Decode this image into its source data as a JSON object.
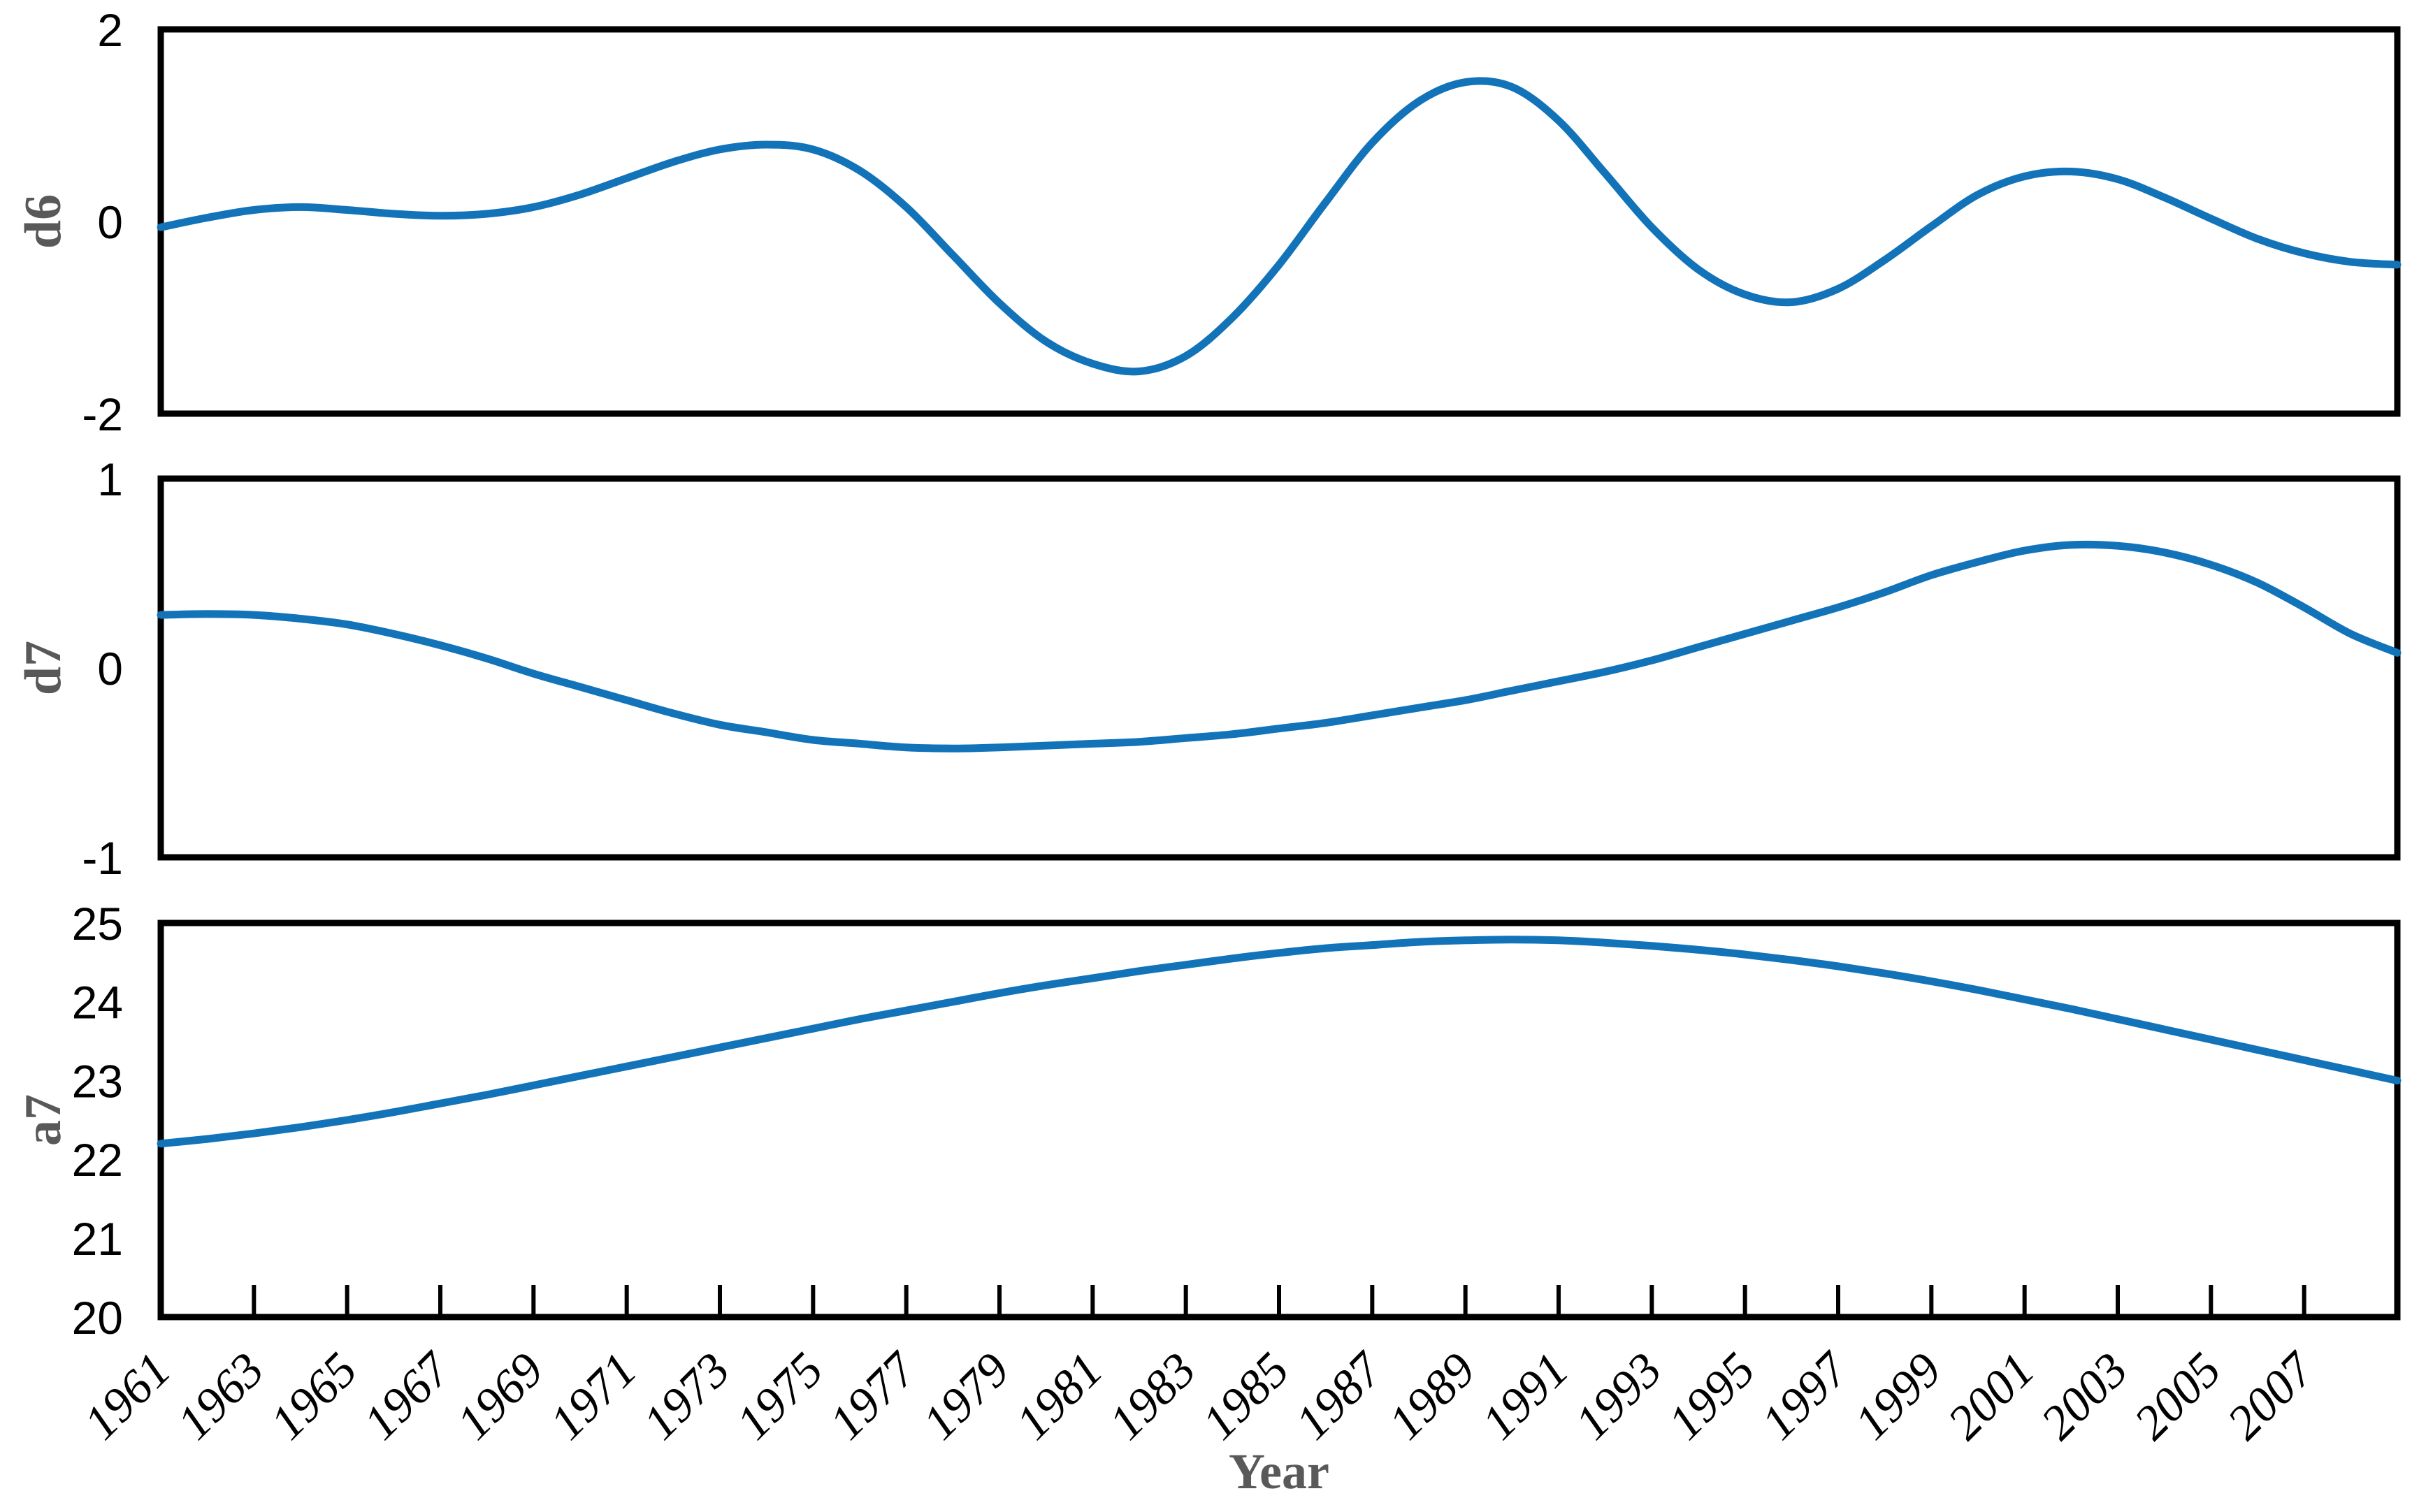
{
  "styles": {
    "background": "#FFFFFF",
    "line_color": "#1373B9",
    "axis_color": "#000000",
    "tick_label_color": "#000000",
    "label_color": "#595959"
  },
  "chart_data": [
    {
      "type": "line",
      "ylabel": "d6",
      "ylim": [
        -2,
        2
      ],
      "yticks": [
        2,
        0,
        -2
      ],
      "grid": false,
      "legend": "none",
      "years": [
        1961,
        1962,
        1963,
        1964,
        1965,
        1966,
        1967,
        1968,
        1969,
        1970,
        1971,
        1972,
        1973,
        1974,
        1975,
        1976,
        1977,
        1978,
        1979,
        1980,
        1981,
        1982,
        1983,
        1984,
        1985,
        1986,
        1987,
        1988,
        1989,
        1990,
        1991,
        1992,
        1993,
        1994,
        1995,
        1996,
        1997,
        1998,
        1999,
        2000,
        2001,
        2002,
        2003,
        2004,
        2005,
        2006,
        2007,
        2008,
        2009
      ],
      "values": [
        -0.06,
        0.04,
        0.12,
        0.15,
        0.12,
        0.08,
        0.06,
        0.08,
        0.15,
        0.28,
        0.45,
        0.62,
        0.75,
        0.8,
        0.75,
        0.53,
        0.15,
        -0.35,
        -0.85,
        -1.25,
        -1.48,
        -1.56,
        -1.4,
        -1.0,
        -0.45,
        0.2,
        0.82,
        1.25,
        1.45,
        1.4,
        1.05,
        0.5,
        -0.06,
        -0.5,
        -0.76,
        -0.84,
        -0.7,
        -0.4,
        -0.05,
        0.28,
        0.47,
        0.52,
        0.44,
        0.25,
        0.03,
        -0.18,
        -0.33,
        -0.42,
        -0.45
      ]
    },
    {
      "type": "line",
      "ylabel": "d7",
      "ylim": [
        -1,
        1
      ],
      "yticks": [
        1,
        0,
        -1
      ],
      "grid": false,
      "legend": "none",
      "years": [
        1961,
        1962,
        1963,
        1964,
        1965,
        1966,
        1967,
        1968,
        1969,
        1970,
        1971,
        1972,
        1973,
        1974,
        1975,
        1976,
        1977,
        1978,
        1979,
        1980,
        1981,
        1982,
        1983,
        1984,
        1985,
        1986,
        1987,
        1988,
        1989,
        1990,
        1991,
        1992,
        1993,
        1994,
        1995,
        1996,
        1997,
        1998,
        1999,
        2000,
        2001,
        2002,
        2003,
        2004,
        2005,
        2006,
        2007,
        2008,
        2009
      ],
      "values": [
        0.28,
        0.285,
        0.28,
        0.26,
        0.23,
        0.18,
        0.12,
        0.05,
        -0.03,
        -0.1,
        -0.17,
        -0.24,
        -0.3,
        -0.34,
        -0.38,
        -0.4,
        -0.42,
        -0.425,
        -0.42,
        -0.41,
        -0.4,
        -0.39,
        -0.37,
        -0.35,
        -0.32,
        -0.29,
        -0.25,
        -0.21,
        -0.17,
        -0.12,
        -0.07,
        -0.02,
        0.04,
        0.11,
        0.18,
        0.25,
        0.32,
        0.4,
        0.49,
        0.56,
        0.62,
        0.65,
        0.645,
        0.61,
        0.545,
        0.45,
        0.32,
        0.18,
        0.08
      ]
    },
    {
      "type": "line",
      "ylabel": "a7",
      "ylim": [
        20,
        25
      ],
      "yticks": [
        25,
        24,
        23,
        22,
        21,
        20
      ],
      "grid": false,
      "legend": "none",
      "xlabel": "Year",
      "xticks": [
        1961,
        1963,
        1965,
        1967,
        1969,
        1971,
        1973,
        1975,
        1977,
        1979,
        1981,
        1983,
        1985,
        1987,
        1989,
        1991,
        1993,
        1995,
        1997,
        1999,
        2001,
        2003,
        2005,
        2007
      ],
      "years": [
        1961,
        1962,
        1963,
        1964,
        1965,
        1966,
        1967,
        1968,
        1969,
        1970,
        1971,
        1972,
        1973,
        1974,
        1975,
        1976,
        1977,
        1978,
        1979,
        1980,
        1981,
        1982,
        1983,
        1984,
        1985,
        1986,
        1987,
        1988,
        1989,
        1990,
        1991,
        1992,
        1993,
        1994,
        1995,
        1996,
        1997,
        1998,
        1999,
        2000,
        2001,
        2002,
        2003,
        2004,
        2005,
        2006,
        2007,
        2008,
        2009
      ],
      "values": [
        22.2,
        22.26,
        22.33,
        22.41,
        22.5,
        22.6,
        22.71,
        22.82,
        22.94,
        23.06,
        23.18,
        23.3,
        23.42,
        23.54,
        23.66,
        23.78,
        23.89,
        24.0,
        24.11,
        24.21,
        24.3,
        24.39,
        24.47,
        24.55,
        24.62,
        24.68,
        24.72,
        24.76,
        24.78,
        24.79,
        24.78,
        24.75,
        24.71,
        24.66,
        24.6,
        24.53,
        24.45,
        24.36,
        24.26,
        24.15,
        24.03,
        23.91,
        23.78,
        23.65,
        23.52,
        23.39,
        23.26,
        23.13,
        23.0
      ]
    }
  ]
}
